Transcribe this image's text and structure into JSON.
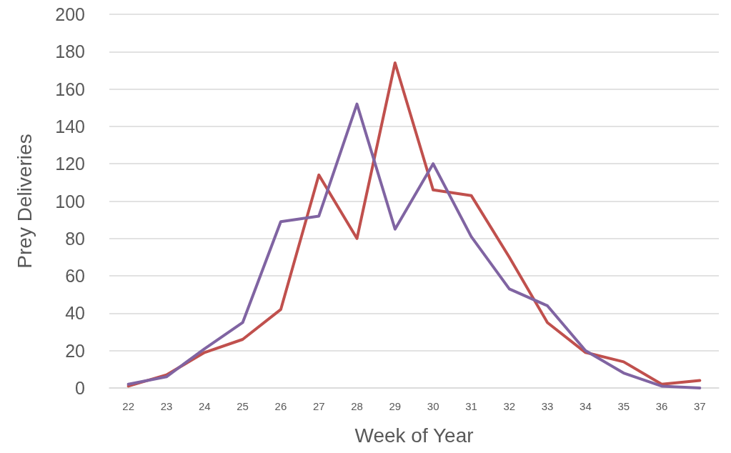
{
  "chart_data": {
    "type": "line",
    "xlabel": "Week of Year",
    "ylabel": "Prey Deliveries",
    "categories": [
      "22",
      "23",
      "24",
      "25",
      "26",
      "27",
      "28",
      "29",
      "30",
      "31",
      "32",
      "33",
      "34",
      "35",
      "36",
      "37"
    ],
    "series": [
      {
        "color": "#c0504d",
        "values": [
          1,
          7,
          19,
          26,
          42,
          114,
          80,
          174,
          106,
          103,
          70,
          35,
          19,
          14,
          2,
          4
        ]
      },
      {
        "color": "#8064a2",
        "values": [
          2,
          6,
          21,
          35,
          89,
          92,
          152,
          85,
          120,
          81,
          53,
          44,
          20,
          8,
          1,
          0
        ]
      }
    ],
    "ylim": [
      0,
      200
    ],
    "yticks": [
      0,
      20,
      40,
      60,
      80,
      100,
      120,
      140,
      160,
      180,
      200
    ],
    "grid": "y",
    "marker": "none",
    "line_style": "solid"
  }
}
